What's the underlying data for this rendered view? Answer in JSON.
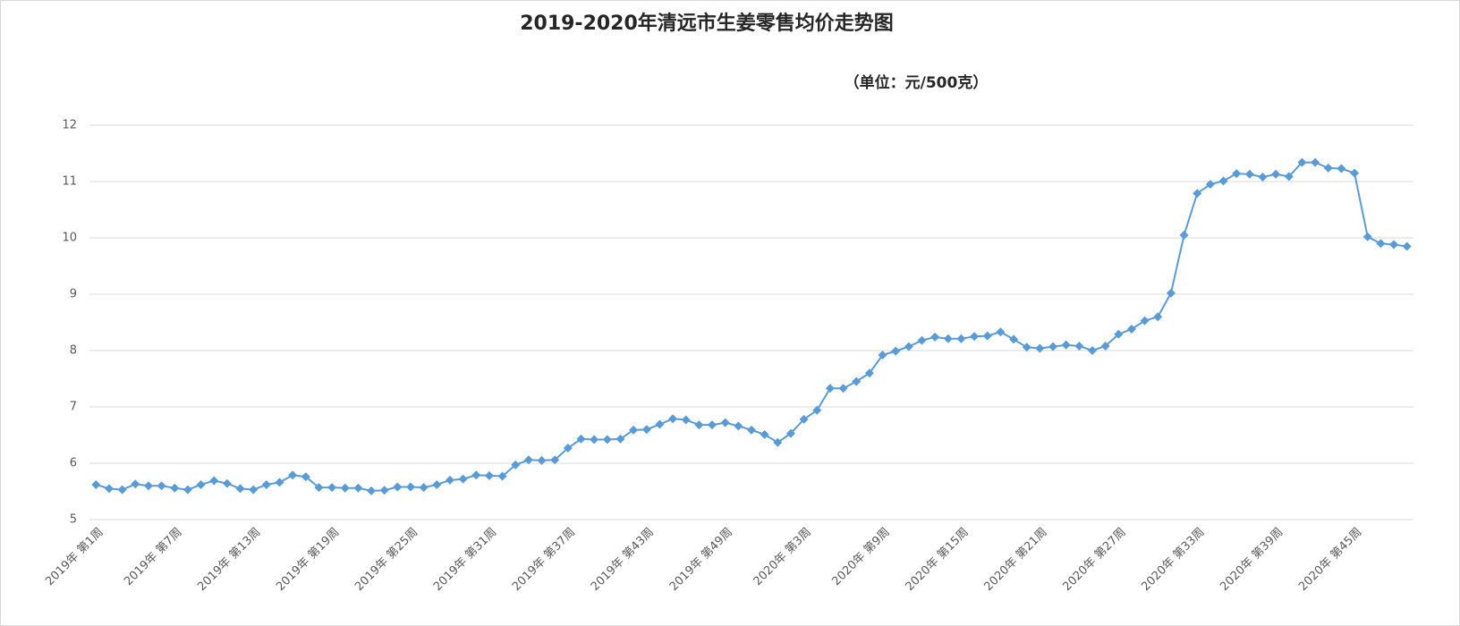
{
  "chart_data": {
    "type": "line",
    "title": "2019-2020年清远市生姜零售均价走势图",
    "annotation": "（单位：元/500克）",
    "categories": [
      "2019年 第1周",
      null,
      null,
      null,
      null,
      null,
      "2019年 第7周",
      null,
      null,
      null,
      null,
      null,
      "2019年 第13周",
      null,
      null,
      null,
      null,
      null,
      "2019年 第19周",
      null,
      null,
      null,
      null,
      null,
      "2019年 第25周",
      null,
      null,
      null,
      null,
      null,
      "2019年 第31周",
      null,
      null,
      null,
      null,
      null,
      "2019年 第37周",
      null,
      null,
      null,
      null,
      null,
      "2019年 第43周",
      null,
      null,
      null,
      null,
      null,
      "2019年 第49周",
      null,
      null,
      null,
      null,
      null,
      "2020年 第3周",
      null,
      null,
      null,
      null,
      null,
      "2020年 第9周",
      null,
      null,
      null,
      null,
      null,
      "2020年 第15周",
      null,
      null,
      null,
      null,
      null,
      "2020年 第21周",
      null,
      null,
      null,
      null,
      null,
      "2020年 第27周",
      null,
      null,
      null,
      null,
      null,
      "2020年 第33周",
      null,
      null,
      null,
      null,
      null,
      "2020年 第39周",
      null,
      null,
      null,
      null,
      null,
      "2020年 第45周",
      null,
      null,
      null,
      null
    ],
    "values": [
      5.62,
      5.55,
      5.53,
      5.63,
      5.6,
      5.6,
      5.56,
      5.53,
      5.62,
      5.69,
      5.64,
      5.55,
      5.53,
      5.62,
      5.66,
      5.79,
      5.76,
      5.57,
      5.57,
      5.56,
      5.56,
      5.51,
      5.52,
      5.58,
      5.58,
      5.57,
      5.62,
      5.7,
      5.72,
      5.79,
      5.78,
      5.77,
      5.97,
      6.06,
      6.05,
      6.06,
      6.27,
      6.43,
      6.42,
      6.42,
      6.43,
      6.59,
      6.6,
      6.69,
      6.79,
      6.77,
      6.68,
      6.68,
      6.72,
      6.66,
      6.59,
      6.51,
      6.37,
      6.53,
      6.78,
      6.94,
      7.33,
      7.33,
      7.45,
      7.6,
      7.92,
      7.99,
      8.07,
      8.18,
      8.24,
      8.21,
      8.21,
      8.25,
      8.26,
      8.33,
      8.2,
      8.06,
      8.04,
      8.07,
      8.1,
      8.08,
      8.0,
      8.08,
      8.29,
      8.38,
      8.53,
      8.6,
      9.02,
      10.05,
      10.79,
      10.95,
      11.01,
      11.14,
      11.13,
      11.08,
      11.13,
      11.09,
      11.34,
      11.34,
      11.24,
      11.23,
      11.15,
      10.02,
      9.9,
      9.88,
      9.85
    ],
    "color": "#5b9bd5",
    "ylim": [
      5,
      12
    ],
    "yticks": [
      5,
      6,
      7,
      8,
      9,
      10,
      11,
      12
    ],
    "grid": true
  }
}
